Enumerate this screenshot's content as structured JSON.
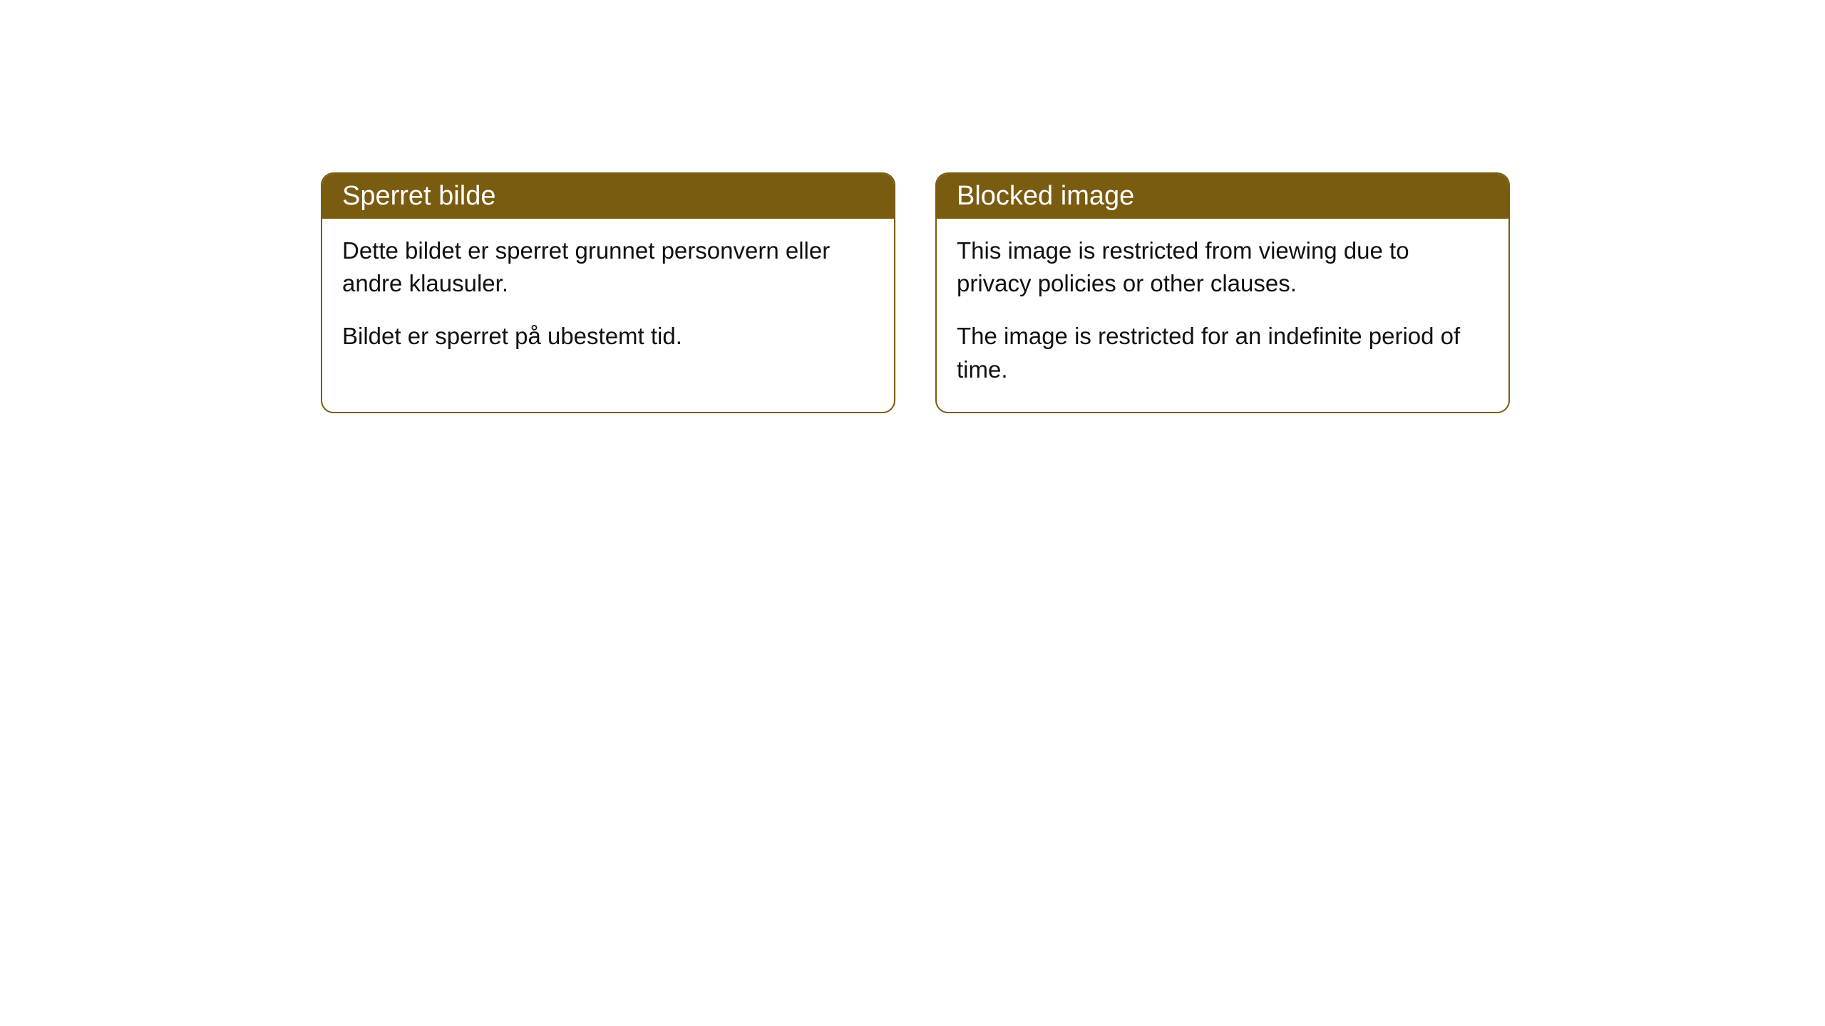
{
  "cards": [
    {
      "title": "Sperret bilde",
      "paragraph1": "Dette bildet er sperret grunnet personvern eller andre klausuler.",
      "paragraph2": "Bildet er sperret på ubestemt tid."
    },
    {
      "title": "Blocked image",
      "paragraph1": "This image is restricted from viewing due to privacy policies or other clauses.",
      "paragraph2": "The image is restricted for an indefinite period of time."
    }
  ],
  "styling": {
    "header_background": "#7a5c11",
    "header_text_color": "#ffffff",
    "border_color": "#7a5c11",
    "body_background": "#ffffff",
    "body_text_color": "#111111",
    "border_radius": 18,
    "title_fontsize": 38,
    "body_fontsize": 33
  }
}
